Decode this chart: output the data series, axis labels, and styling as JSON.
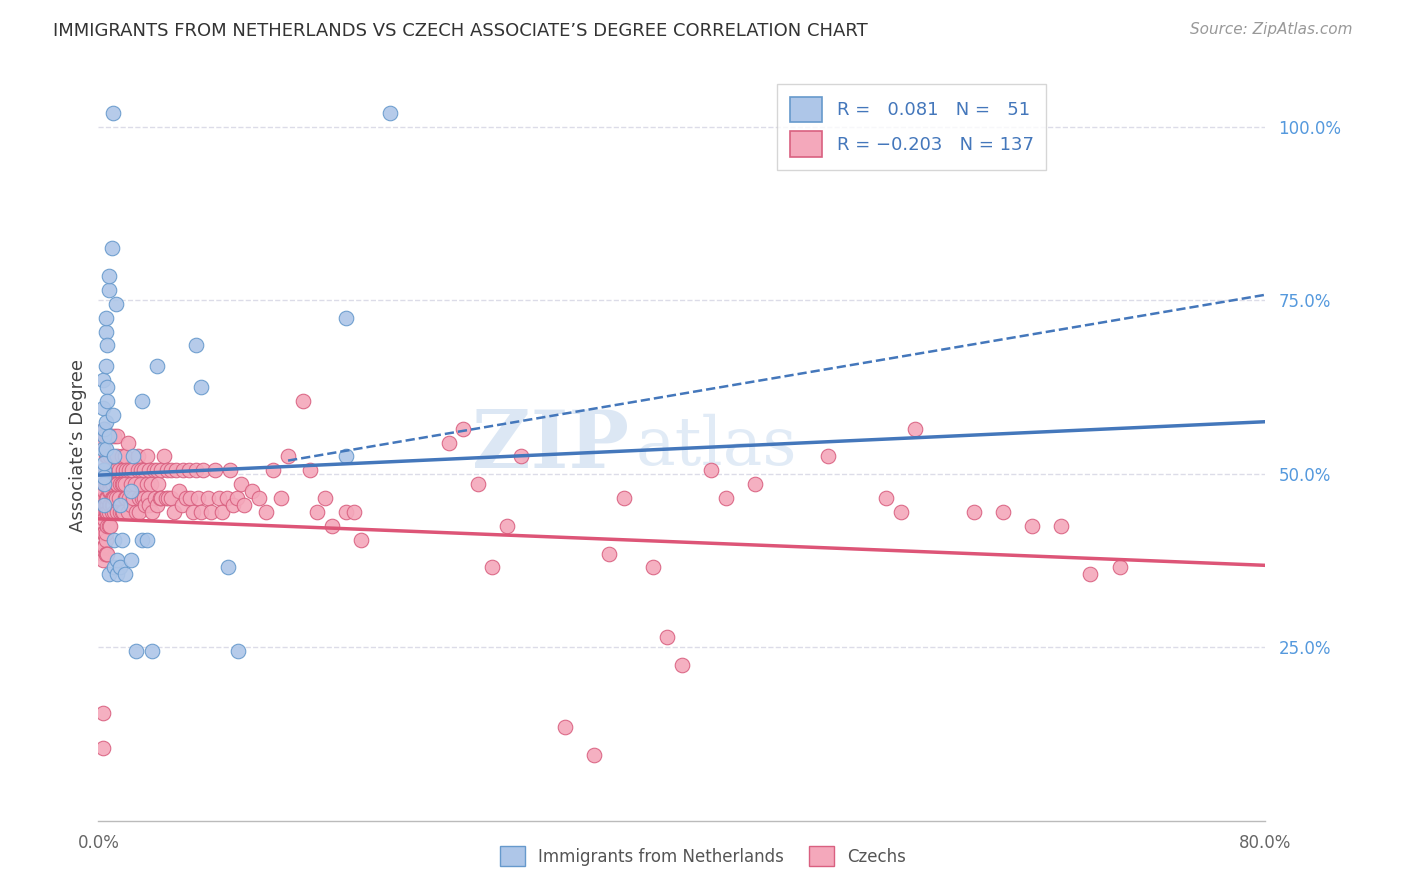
{
  "title": "IMMIGRANTS FROM NETHERLANDS VS CZECH ASSOCIATE’S DEGREE CORRELATION CHART",
  "source": "Source: ZipAtlas.com",
  "ylabel": "Associate’s Degree",
  "ytick_labels": [
    "100.0%",
    "75.0%",
    "50.0%",
    "25.0%"
  ],
  "ytick_values": [
    1.0,
    0.75,
    0.5,
    0.25
  ],
  "xlim": [
    0.0,
    0.8
  ],
  "ylim": [
    0.0,
    1.08
  ],
  "watermark_zip": "ZIP",
  "watermark_atlas": "atlas",
  "blue_color": "#AEC6E8",
  "blue_edge_color": "#6699CC",
  "pink_color": "#F4A8BB",
  "pink_edge_color": "#D96080",
  "blue_line_color": "#4477BB",
  "pink_line_color": "#DD5577",
  "ytick_color": "#5599DD",
  "xtick_color": "#666666",
  "blue_scatter": [
    [
      0.003,
      0.535
    ],
    [
      0.003,
      0.595
    ],
    [
      0.003,
      0.635
    ],
    [
      0.004,
      0.555
    ],
    [
      0.004,
      0.565
    ],
    [
      0.004,
      0.505
    ],
    [
      0.004,
      0.455
    ],
    [
      0.004,
      0.485
    ],
    [
      0.004,
      0.495
    ],
    [
      0.004,
      0.515
    ],
    [
      0.005,
      0.705
    ],
    [
      0.005,
      0.655
    ],
    [
      0.005,
      0.725
    ],
    [
      0.005,
      0.575
    ],
    [
      0.005,
      0.535
    ],
    [
      0.006,
      0.685
    ],
    [
      0.006,
      0.625
    ],
    [
      0.006,
      0.605
    ],
    [
      0.007,
      0.765
    ],
    [
      0.007,
      0.785
    ],
    [
      0.007,
      0.555
    ],
    [
      0.007,
      0.355
    ],
    [
      0.009,
      0.825
    ],
    [
      0.01,
      1.02
    ],
    [
      0.01,
      0.585
    ],
    [
      0.011,
      0.525
    ],
    [
      0.011,
      0.405
    ],
    [
      0.011,
      0.365
    ],
    [
      0.012,
      0.745
    ],
    [
      0.013,
      0.355
    ],
    [
      0.013,
      0.375
    ],
    [
      0.015,
      0.365
    ],
    [
      0.015,
      0.455
    ],
    [
      0.016,
      0.405
    ],
    [
      0.018,
      0.355
    ],
    [
      0.022,
      0.375
    ],
    [
      0.022,
      0.475
    ],
    [
      0.024,
      0.525
    ],
    [
      0.026,
      0.245
    ],
    [
      0.03,
      0.605
    ],
    [
      0.03,
      0.405
    ],
    [
      0.033,
      0.405
    ],
    [
      0.037,
      0.245
    ],
    [
      0.04,
      0.655
    ],
    [
      0.067,
      0.685
    ],
    [
      0.17,
      0.725
    ],
    [
      0.17,
      0.525
    ],
    [
      0.2,
      1.02
    ],
    [
      0.07,
      0.625
    ],
    [
      0.089,
      0.365
    ],
    [
      0.096,
      0.245
    ]
  ],
  "pink_scatter": [
    [
      0.003,
      0.505
    ],
    [
      0.003,
      0.485
    ],
    [
      0.003,
      0.465
    ],
    [
      0.003,
      0.435
    ],
    [
      0.003,
      0.425
    ],
    [
      0.003,
      0.415
    ],
    [
      0.003,
      0.395
    ],
    [
      0.003,
      0.385
    ],
    [
      0.003,
      0.375
    ],
    [
      0.003,
      0.555
    ],
    [
      0.003,
      0.545
    ],
    [
      0.004,
      0.445
    ],
    [
      0.004,
      0.455
    ],
    [
      0.004,
      0.475
    ],
    [
      0.004,
      0.435
    ],
    [
      0.004,
      0.565
    ],
    [
      0.004,
      0.485
    ],
    [
      0.004,
      0.395
    ],
    [
      0.004,
      0.415
    ],
    [
      0.005,
      0.555
    ],
    [
      0.005,
      0.485
    ],
    [
      0.005,
      0.455
    ],
    [
      0.005,
      0.405
    ],
    [
      0.005,
      0.385
    ],
    [
      0.005,
      0.525
    ],
    [
      0.005,
      0.485
    ],
    [
      0.005,
      0.465
    ],
    [
      0.005,
      0.455
    ],
    [
      0.005,
      0.445
    ],
    [
      0.005,
      0.385
    ],
    [
      0.005,
      0.445
    ],
    [
      0.005,
      0.415
    ],
    [
      0.006,
      0.555
    ],
    [
      0.006,
      0.525
    ],
    [
      0.006,
      0.485
    ],
    [
      0.006,
      0.455
    ],
    [
      0.006,
      0.445
    ],
    [
      0.006,
      0.425
    ],
    [
      0.006,
      0.385
    ],
    [
      0.006,
      0.505
    ],
    [
      0.006,
      0.465
    ],
    [
      0.006,
      0.445
    ],
    [
      0.007,
      0.485
    ],
    [
      0.007,
      0.455
    ],
    [
      0.007,
      0.425
    ],
    [
      0.007,
      0.505
    ],
    [
      0.007,
      0.475
    ],
    [
      0.007,
      0.445
    ],
    [
      0.008,
      0.525
    ],
    [
      0.008,
      0.485
    ],
    [
      0.008,
      0.555
    ],
    [
      0.008,
      0.505
    ],
    [
      0.008,
      0.475
    ],
    [
      0.008,
      0.455
    ],
    [
      0.008,
      0.425
    ],
    [
      0.009,
      0.505
    ],
    [
      0.009,
      0.465
    ],
    [
      0.009,
      0.445
    ],
    [
      0.009,
      0.485
    ],
    [
      0.009,
      0.455
    ],
    [
      0.01,
      0.505
    ],
    [
      0.01,
      0.465
    ],
    [
      0.01,
      0.485
    ],
    [
      0.01,
      0.455
    ],
    [
      0.011,
      0.555
    ],
    [
      0.011,
      0.505
    ],
    [
      0.011,
      0.465
    ],
    [
      0.011,
      0.445
    ],
    [
      0.012,
      0.485
    ],
    [
      0.012,
      0.505
    ],
    [
      0.012,
      0.465
    ],
    [
      0.013,
      0.485
    ],
    [
      0.013,
      0.555
    ],
    [
      0.013,
      0.525
    ],
    [
      0.013,
      0.485
    ],
    [
      0.013,
      0.445
    ],
    [
      0.014,
      0.505
    ],
    [
      0.014,
      0.465
    ],
    [
      0.015,
      0.485
    ],
    [
      0.015,
      0.445
    ],
    [
      0.016,
      0.525
    ],
    [
      0.016,
      0.485
    ],
    [
      0.016,
      0.445
    ],
    [
      0.017,
      0.505
    ],
    [
      0.017,
      0.485
    ],
    [
      0.017,
      0.445
    ],
    [
      0.018,
      0.485
    ],
    [
      0.018,
      0.525
    ],
    [
      0.018,
      0.465
    ],
    [
      0.019,
      0.505
    ],
    [
      0.019,
      0.465
    ],
    [
      0.02,
      0.545
    ],
    [
      0.02,
      0.445
    ],
    [
      0.021,
      0.505
    ],
    [
      0.021,
      0.465
    ],
    [
      0.022,
      0.455
    ],
    [
      0.022,
      0.485
    ],
    [
      0.023,
      0.505
    ],
    [
      0.024,
      0.465
    ],
    [
      0.025,
      0.485
    ],
    [
      0.026,
      0.445
    ],
    [
      0.027,
      0.525
    ],
    [
      0.027,
      0.505
    ],
    [
      0.028,
      0.465
    ],
    [
      0.028,
      0.445
    ],
    [
      0.029,
      0.485
    ],
    [
      0.029,
      0.505
    ],
    [
      0.03,
      0.465
    ],
    [
      0.031,
      0.505
    ],
    [
      0.031,
      0.465
    ],
    [
      0.032,
      0.455
    ],
    [
      0.033,
      0.525
    ],
    [
      0.033,
      0.485
    ],
    [
      0.034,
      0.465
    ],
    [
      0.035,
      0.505
    ],
    [
      0.035,
      0.455
    ],
    [
      0.036,
      0.485
    ],
    [
      0.037,
      0.445
    ],
    [
      0.038,
      0.505
    ],
    [
      0.039,
      0.465
    ],
    [
      0.04,
      0.455
    ],
    [
      0.04,
      0.505
    ],
    [
      0.041,
      0.485
    ],
    [
      0.042,
      0.465
    ],
    [
      0.043,
      0.505
    ],
    [
      0.043,
      0.465
    ],
    [
      0.045,
      0.525
    ],
    [
      0.046,
      0.465
    ],
    [
      0.047,
      0.505
    ],
    [
      0.048,
      0.465
    ],
    [
      0.05,
      0.505
    ],
    [
      0.05,
      0.465
    ],
    [
      0.052,
      0.445
    ],
    [
      0.053,
      0.505
    ],
    [
      0.055,
      0.475
    ],
    [
      0.057,
      0.455
    ],
    [
      0.058,
      0.505
    ],
    [
      0.06,
      0.465
    ],
    [
      0.062,
      0.505
    ],
    [
      0.063,
      0.465
    ],
    [
      0.065,
      0.445
    ],
    [
      0.067,
      0.505
    ],
    [
      0.068,
      0.465
    ],
    [
      0.07,
      0.445
    ],
    [
      0.072,
      0.505
    ],
    [
      0.075,
      0.465
    ],
    [
      0.077,
      0.445
    ],
    [
      0.08,
      0.505
    ],
    [
      0.083,
      0.465
    ],
    [
      0.085,
      0.445
    ],
    [
      0.088,
      0.465
    ],
    [
      0.09,
      0.505
    ],
    [
      0.092,
      0.455
    ],
    [
      0.095,
      0.465
    ],
    [
      0.098,
      0.485
    ],
    [
      0.1,
      0.455
    ],
    [
      0.105,
      0.475
    ],
    [
      0.11,
      0.465
    ],
    [
      0.115,
      0.445
    ],
    [
      0.12,
      0.505
    ],
    [
      0.125,
      0.465
    ],
    [
      0.13,
      0.525
    ],
    [
      0.14,
      0.605
    ],
    [
      0.145,
      0.505
    ],
    [
      0.15,
      0.445
    ],
    [
      0.155,
      0.465
    ],
    [
      0.16,
      0.425
    ],
    [
      0.17,
      0.445
    ],
    [
      0.175,
      0.445
    ],
    [
      0.18,
      0.405
    ],
    [
      0.003,
      0.155
    ],
    [
      0.003,
      0.105
    ],
    [
      0.24,
      0.545
    ],
    [
      0.25,
      0.565
    ],
    [
      0.26,
      0.485
    ],
    [
      0.27,
      0.365
    ],
    [
      0.28,
      0.425
    ],
    [
      0.29,
      0.525
    ],
    [
      0.32,
      0.135
    ],
    [
      0.34,
      0.095
    ],
    [
      0.35,
      0.385
    ],
    [
      0.36,
      0.465
    ],
    [
      0.38,
      0.365
    ],
    [
      0.39,
      0.265
    ],
    [
      0.4,
      0.225
    ],
    [
      0.42,
      0.505
    ],
    [
      0.43,
      0.465
    ],
    [
      0.45,
      0.485
    ],
    [
      0.5,
      0.525
    ],
    [
      0.54,
      0.465
    ],
    [
      0.55,
      0.445
    ],
    [
      0.56,
      0.565
    ],
    [
      0.6,
      0.445
    ],
    [
      0.62,
      0.445
    ],
    [
      0.64,
      0.425
    ],
    [
      0.66,
      0.425
    ],
    [
      0.68,
      0.355
    ],
    [
      0.7,
      0.365
    ]
  ],
  "blue_line": [
    [
      0.0,
      0.498
    ],
    [
      0.8,
      0.575
    ]
  ],
  "blue_dashed_line": [
    [
      0.13,
      0.519
    ],
    [
      0.8,
      0.758
    ]
  ],
  "pink_line": [
    [
      0.0,
      0.435
    ],
    [
      0.8,
      0.368
    ]
  ],
  "background_color": "#FFFFFF",
  "grid_color": "#DCDCE8",
  "grid_linestyle": "--"
}
